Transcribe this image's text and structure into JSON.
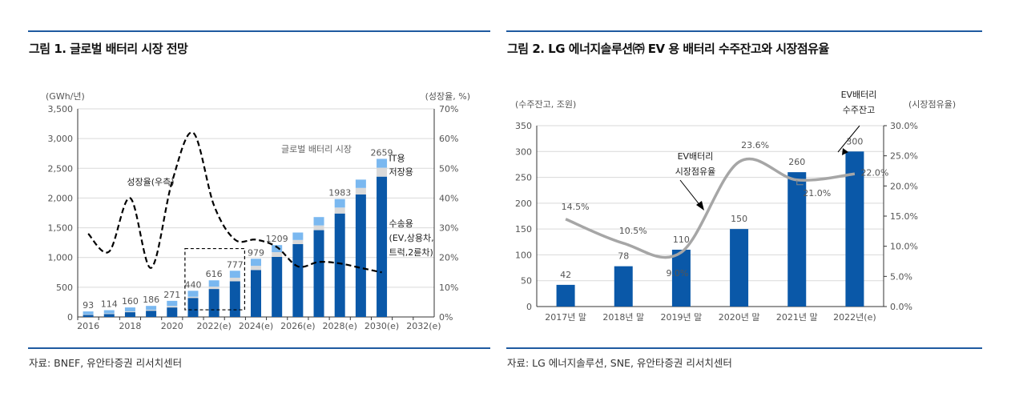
{
  "figure1": {
    "title": "그림 1. 글로벌 배터리 시장 전망",
    "source": "자료: BNEF, 유안타증권 리서치센터"
  },
  "figure2": {
    "title": "그림 2. LG 에너지솔루션㈜ EV 용 배터리 수주잔고와 시장점유율",
    "source": "자료: LG 에너지솔루션, SNE, 유안타증권 리서치센터"
  },
  "chart_data": [
    {
      "type": "bar",
      "stacked": true,
      "title": "글로벌 배터리 시장",
      "ylabel": "(GWh/년)",
      "y2label": "(성장율, %)",
      "ylim": [
        0,
        3500
      ],
      "yticks": [
        "0",
        "500",
        "1,000",
        "1,500",
        "2,000",
        "2,500",
        "3,000",
        "3,500"
      ],
      "y2lim": [
        0,
        70
      ],
      "y2ticks": [
        "0%",
        "10%",
        "20%",
        "30%",
        "40%",
        "50%",
        "60%",
        "70%"
      ],
      "categories": [
        "2016",
        "2017",
        "2018",
        "2019",
        "2020",
        "2021",
        "2022",
        "2023",
        "2024",
        "2025",
        "2026",
        "2027",
        "2028",
        "2029",
        "2030",
        "2031",
        "2032"
      ],
      "xtick_labels": [
        "2016",
        "",
        "2018",
        "",
        "2020",
        "",
        "2022(e)",
        "",
        "2024(e)",
        "",
        "2026(e)",
        "",
        "2028(e)",
        "",
        "2030(e)",
        "",
        "2032(e)"
      ],
      "series": [
        {
          "name": "수송용\n(EV,상용차,\n트럭,2륜차)",
          "color": "#0a58a8",
          "values": [
            35,
            50,
            80,
            105,
            160,
            320,
            470,
            600,
            790,
            1010,
            1225,
            1460,
            1740,
            2060,
            2360,
            null,
            null
          ]
        },
        {
          "name": "저장용",
          "color": "#d9d9d9",
          "values": [
            8,
            10,
            15,
            15,
            25,
            20,
            40,
            60,
            70,
            80,
            70,
            80,
            100,
            110,
            150,
            null,
            null
          ]
        },
        {
          "name": "IT용",
          "color": "#7ab8f0",
          "values": [
            50,
            54,
            65,
            66,
            86,
            100,
            106,
            117,
            119,
            119,
            125,
            140,
            143,
            140,
            149,
            null,
            null
          ]
        }
      ],
      "totals_labels": [
        "93",
        "114",
        "160",
        "186",
        "271",
        "440",
        "616",
        "777",
        "979",
        "1209",
        "",
        "",
        "1983",
        "",
        "2659",
        "",
        ""
      ],
      "line": {
        "name": "성장율(우측)",
        "axis": "right",
        "style": "dashed",
        "color": "#000000",
        "values": [
          28,
          22,
          40,
          16.5,
          45.5,
          62,
          37.5,
          26,
          26,
          23.5,
          17,
          18.5,
          18,
          16.5,
          15,
          null,
          null
        ]
      },
      "annotations": {
        "highlight_box": [
          "2021",
          "2023"
        ]
      },
      "grid": true
    },
    {
      "type": "bar",
      "ylabel": "(수주잔고, 조원)",
      "y2label": "(시장점유율)",
      "ylim": [
        0,
        350
      ],
      "yticks": [
        "0",
        "50",
        "100",
        "150",
        "200",
        "250",
        "300",
        "350"
      ],
      "y2lim": [
        0,
        30
      ],
      "y2ticks": [
        "0.0%",
        "5.0%",
        "10.0%",
        "15.0%",
        "20.0%",
        "25.0%",
        "30.0%"
      ],
      "categories": [
        "2017년 말",
        "2018년 말",
        "2019년 말",
        "2020년 말",
        "2021년 말",
        "2022년(e)"
      ],
      "bars": {
        "name": "EV배터리\n수주잔고",
        "color": "#0a58a8",
        "values": [
          42,
          78,
          110,
          150,
          260,
          300
        ],
        "labels": [
          "42",
          "78",
          "110",
          "150",
          "260",
          "300"
        ]
      },
      "line": {
        "name": "EV배터리\n시장점유율",
        "axis": "right",
        "color": "#a6a6a6",
        "values": [
          14.5,
          10.5,
          9.0,
          23.6,
          21.0,
          22.0
        ],
        "labels": [
          "14.5%",
          "10.5%",
          "9.0%",
          "23.6%",
          "21.0%",
          "22.0%"
        ]
      },
      "grid": true
    }
  ]
}
